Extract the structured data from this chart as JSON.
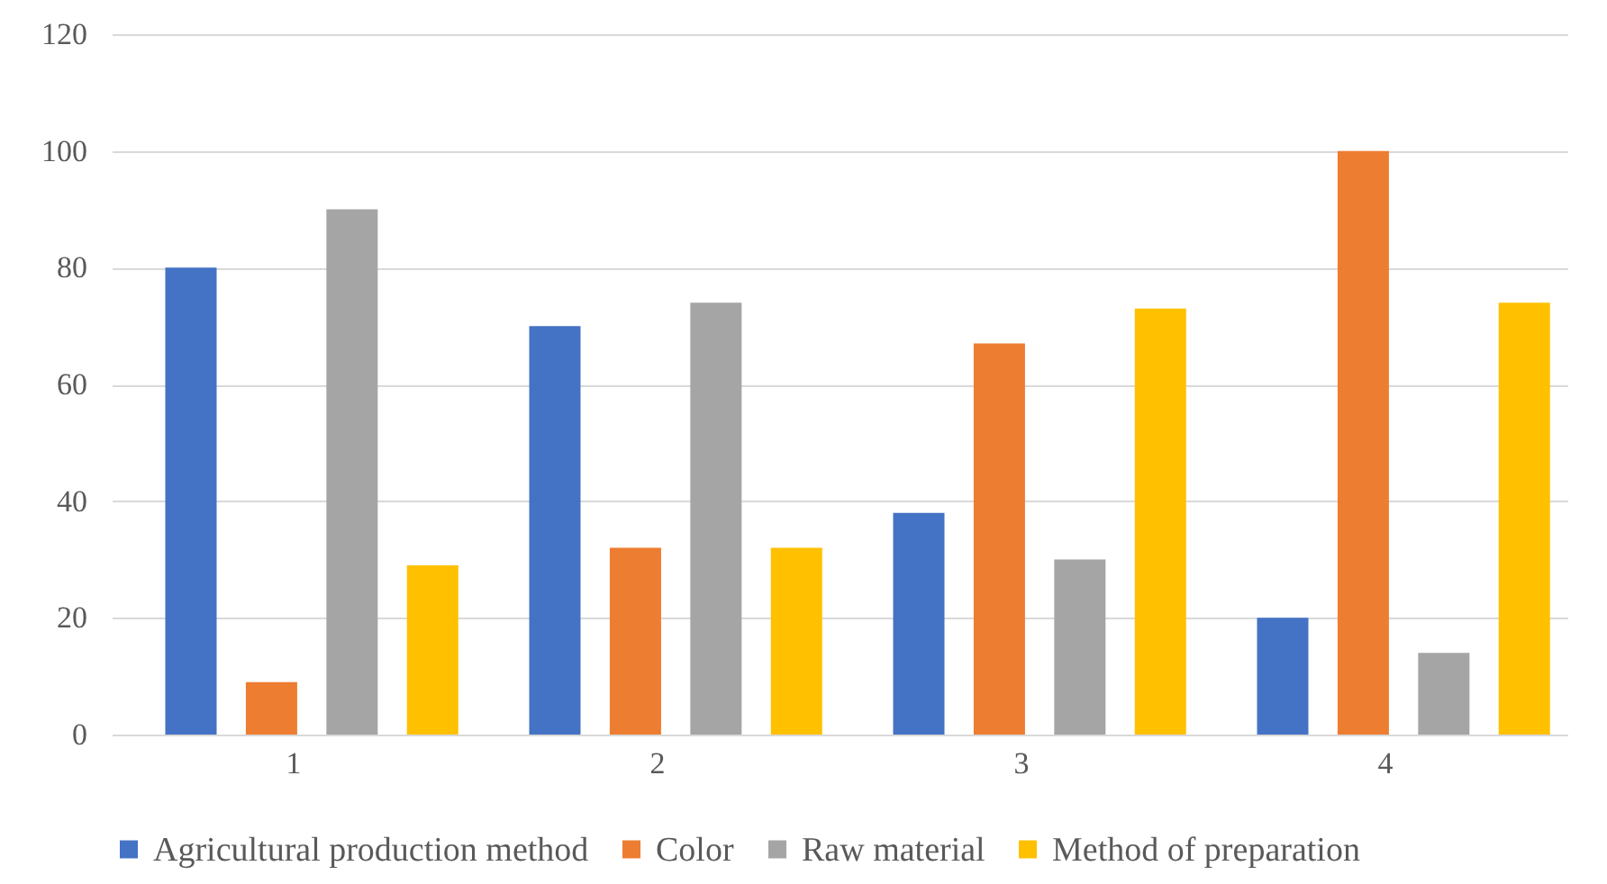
{
  "chart_data": {
    "type": "bar",
    "categories": [
      "1",
      "2",
      "3",
      "4"
    ],
    "series": [
      {
        "name": "Agricultural production method",
        "color": "#4472c4",
        "values": [
          80,
          70,
          38,
          20
        ]
      },
      {
        "name": "Color",
        "color": "#ed7d31",
        "values": [
          9,
          32,
          67,
          100
        ]
      },
      {
        "name": "Raw material",
        "color": "#a5a5a5",
        "values": [
          90,
          74,
          30,
          14
        ]
      },
      {
        "name": "Method of preparation",
        "color": "#ffc000",
        "values": [
          29,
          32,
          73,
          74
        ]
      }
    ],
    "ylim": [
      0,
      120
    ],
    "yticks": [
      0,
      20,
      40,
      60,
      80,
      100,
      120
    ],
    "grid": "y",
    "legend": "bottom"
  }
}
